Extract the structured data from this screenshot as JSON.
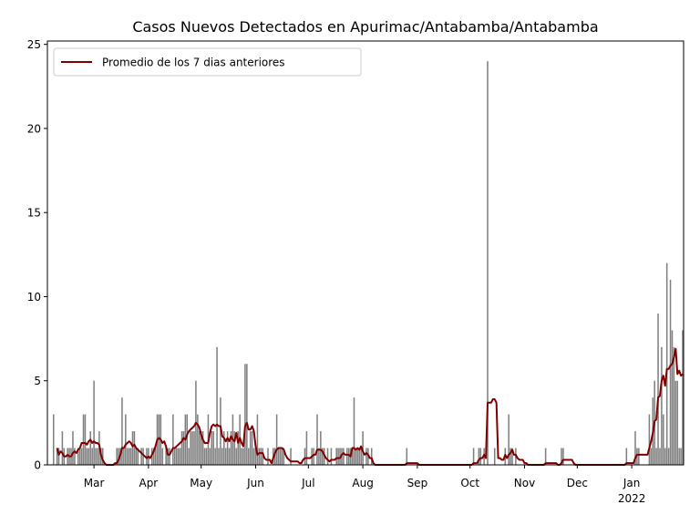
{
  "chart_data": {
    "type": "bar_line",
    "title": "Casos Nuevos Detectados en Apurimac/Antabamba/Antabamba",
    "series": [
      {
        "type": "bar",
        "color": "#808080",
        "values": [
          0,
          0,
          0,
          3,
          0,
          1,
          1,
          0,
          2,
          1,
          0,
          1,
          1,
          1,
          2,
          1,
          0,
          1,
          1,
          1,
          3,
          3,
          1,
          1,
          2,
          1,
          5,
          1,
          1,
          2,
          1,
          1,
          0,
          0,
          0,
          0,
          0,
          0,
          0,
          1,
          1,
          1,
          4,
          1,
          3,
          1,
          1,
          1,
          2,
          2,
          1,
          1,
          0,
          1,
          1,
          0,
          1,
          1,
          0,
          1,
          1,
          1,
          3,
          3,
          3,
          1,
          0,
          1,
          1,
          1,
          0,
          3,
          1,
          1,
          1,
          1,
          2,
          2,
          3,
          3,
          1,
          2,
          2,
          2,
          5,
          3,
          2,
          2,
          2,
          1,
          1,
          3,
          1,
          2,
          2,
          1,
          7,
          1,
          4,
          1,
          2,
          1,
          2,
          1,
          2,
          3,
          2,
          1,
          2,
          3,
          1,
          1,
          6,
          6,
          1,
          2,
          2,
          1,
          1,
          3,
          1,
          1,
          1,
          0,
          0,
          1,
          0,
          0,
          1,
          1,
          3,
          1,
          1,
          1,
          1,
          0,
          0,
          0,
          1,
          0,
          0,
          0,
          0,
          0,
          0,
          0,
          1,
          2,
          0,
          0,
          1,
          1,
          0,
          3,
          1,
          2,
          1,
          1,
          0,
          1,
          0,
          1,
          0,
          0,
          1,
          1,
          1,
          1,
          1,
          0,
          1,
          1,
          1,
          1,
          4,
          1,
          1,
          1,
          1,
          2,
          0,
          1,
          1,
          0,
          1,
          0,
          0,
          0,
          0,
          0,
          0,
          0,
          0,
          0,
          0,
          0,
          0,
          0,
          0,
          0,
          0,
          0,
          0,
          0,
          1,
          0,
          0,
          0,
          0,
          0,
          0,
          0,
          0,
          0,
          0,
          0,
          0,
          0,
          0,
          0,
          0,
          0,
          0,
          0,
          0,
          0,
          0,
          0,
          0,
          0,
          0,
          0,
          0,
          0,
          0,
          0,
          0,
          0,
          0,
          0,
          0,
          0,
          1,
          0,
          0,
          1,
          1,
          0,
          1,
          0,
          24,
          0,
          0,
          0,
          1,
          0,
          0,
          0,
          0,
          0,
          1,
          0,
          3,
          1,
          1,
          0,
          1,
          0,
          0,
          0,
          0,
          0,
          0,
          0,
          0,
          0,
          0,
          0,
          0,
          0,
          0,
          0,
          0,
          1,
          0,
          0,
          0,
          0,
          0,
          0,
          0,
          0,
          1,
          1,
          0,
          0,
          0,
          0,
          0,
          0,
          0,
          0,
          0,
          0,
          0,
          0,
          0,
          0,
          0,
          0,
          0,
          0,
          0,
          0,
          0,
          0,
          0,
          0,
          0,
          0,
          0,
          0,
          0,
          0,
          0,
          0,
          0,
          0,
          0,
          1,
          0,
          0,
          0,
          0,
          2,
          1,
          1,
          0,
          0,
          0,
          0,
          0,
          3,
          1,
          4,
          5,
          1,
          9,
          1,
          7,
          3,
          1,
          12,
          1,
          11,
          8,
          7,
          5,
          5,
          1,
          1,
          8
        ]
      },
      {
        "type": "line",
        "name": "Promedio de los 7 dias anteriores",
        "color": "#800000",
        "values": [
          null,
          null,
          null,
          null,
          null,
          1.0,
          0.6,
          0.8,
          0.7,
          0.5,
          0.5,
          0.6,
          0.5,
          0.5,
          0.7,
          0.8,
          0.7,
          0.9,
          1.0,
          1.3,
          1.3,
          1.3,
          1.2,
          1.4,
          1.5,
          1.3,
          1.4,
          1.3,
          1.3,
          1.2,
          0.6,
          0.3,
          0.1,
          0,
          0,
          0,
          0,
          0,
          0.1,
          0.1,
          0.3,
          0.6,
          1.0,
          1.0,
          1.2,
          1.3,
          1.4,
          1.3,
          1.1,
          1.2,
          1.0,
          0.9,
          0.8,
          0.7,
          0.6,
          0.5,
          0.4,
          0.5,
          0.4,
          0.6,
          0.8,
          1.1,
          1.5,
          1.6,
          1.5,
          1.3,
          1.4,
          1.1,
          0.6,
          0.6,
          0.8,
          1.0,
          1.0,
          1.1,
          1.2,
          1.3,
          1.4,
          1.6,
          1.5,
          1.8,
          2.0,
          2.1,
          2.2,
          2.3,
          2.5,
          2.4,
          2.2,
          1.8,
          1.5,
          1.3,
          1.3,
          1.3,
          1.9,
          2.3,
          2.4,
          2.3,
          2.4,
          2.3,
          2.3,
          1.7,
          1.6,
          1.4,
          1.6,
          1.4,
          1.7,
          1.5,
          1.4,
          1.9,
          1.3,
          1.6,
          1.3,
          1.1,
          2.3,
          2.5,
          2.1,
          2.1,
          2.3,
          2.0,
          1.1,
          0.6,
          0.7,
          0.7,
          0.7,
          0.4,
          0.3,
          0.3,
          0.3,
          0.1,
          0.4,
          0.7,
          0.9,
          1.0,
          1.0,
          1.0,
          0.9,
          0.6,
          0.4,
          0.3,
          0.2,
          0.2,
          0.2,
          0.2,
          0.2,
          0.1,
          0.1,
          0.3,
          0.4,
          0.4,
          0.4,
          0.4,
          0.5,
          0.6,
          0.6,
          0.9,
          0.9,
          0.9,
          0.8,
          0.6,
          0.4,
          0.3,
          0.2,
          0.3,
          0.3,
          0.3,
          0.4,
          0.4,
          0.4,
          0.6,
          0.7,
          0.6,
          0.6,
          0.6,
          0.5,
          1.0,
          1.0,
          0.9,
          1.0,
          0.9,
          1.1,
          0.8,
          0.6,
          0.7,
          0.6,
          0.4,
          0.4,
          0.1,
          0,
          0,
          0,
          0,
          0,
          0,
          0,
          0,
          0,
          0,
          0,
          0,
          0,
          0,
          0,
          0,
          0,
          0,
          0.1,
          0.1,
          0.1,
          0.1,
          0.1,
          0.1,
          0.1,
          0,
          0,
          0,
          0,
          0,
          0,
          0,
          0,
          0,
          0,
          0,
          0,
          0,
          0,
          0,
          0,
          0,
          0,
          0,
          0,
          0,
          0,
          0,
          0,
          0,
          0,
          0,
          0,
          0,
          0,
          0,
          0.1,
          0.1,
          0.1,
          0.3,
          0.4,
          0.4,
          0.6,
          0.4,
          3.7,
          3.7,
          3.7,
          3.9,
          3.9,
          3.7,
          0.4,
          0.4,
          0.3,
          0.3,
          0.6,
          0.4,
          0.6,
          0.7,
          0.9,
          0.6,
          0.6,
          0.4,
          0.3,
          0.3,
          0.3,
          0.1,
          0.1,
          0,
          0,
          0,
          0,
          0,
          0,
          0,
          0,
          0,
          0,
          0.1,
          0.1,
          0.1,
          0.1,
          0.1,
          0.1,
          0.1,
          0,
          0,
          0.1,
          0.3,
          0.3,
          0.3,
          0.3,
          0.3,
          0.3,
          0.1,
          0,
          0,
          0,
          0,
          0,
          0,
          0,
          0,
          0,
          0,
          0,
          0,
          0,
          0,
          0,
          0,
          0,
          0,
          0,
          0,
          0,
          0,
          0,
          0,
          0,
          0,
          0,
          0,
          0,
          0.1,
          0.1,
          0.1,
          0.1,
          0.1,
          0.4,
          0.6,
          0.6,
          0.6,
          0.6,
          0.6,
          0.6,
          0.6,
          1.0,
          1.4,
          1.9,
          2.6,
          2.7,
          4.0,
          4.1,
          5.0,
          5.3,
          4.7,
          5.7,
          5.7,
          5.9,
          6.0,
          6.4,
          6.9,
          5.4,
          5.6,
          5.3,
          5.4
        ]
      }
    ],
    "xlim": [
      -0.5,
      361.5
    ],
    "xticks": [
      {
        "value": 26,
        "label": "Mar"
      },
      {
        "value": 57,
        "label": "Apr"
      },
      {
        "value": 87,
        "label": "May"
      },
      {
        "value": 118,
        "label": "Jun"
      },
      {
        "value": 148,
        "label": "Jul"
      },
      {
        "value": 179,
        "label": "Aug"
      },
      {
        "value": 210,
        "label": "Sep"
      },
      {
        "value": 240,
        "label": "Oct"
      },
      {
        "value": 271,
        "label": "Nov"
      },
      {
        "value": 301,
        "label": "Dec"
      },
      {
        "value": 332,
        "label": "Jan\n2022"
      }
    ],
    "ylim": [
      0,
      25.2
    ],
    "yticks": [
      0,
      5,
      10,
      15,
      20,
      25
    ],
    "legend": "upper left"
  }
}
